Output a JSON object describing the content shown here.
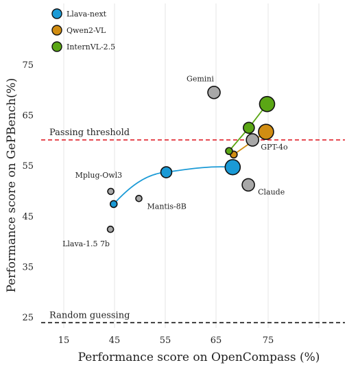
{
  "chart_data": {
    "type": "scatter",
    "xlabel": "Performance score on OpenCompass (%)",
    "ylabel": "Performance score on GePBench(%)",
    "x_ticks": [
      15,
      45,
      55,
      65,
      75
    ],
    "y_ticks": [
      25,
      35,
      45,
      55,
      65,
      75
    ],
    "grid": true,
    "legend_position": "top-left",
    "series": [
      {
        "name": "Llava-next",
        "color": "#1a9ad6",
        "points": [
          {
            "x": 44.5,
            "y": 47.5,
            "size": "small"
          },
          {
            "x": 55.2,
            "y": 53.8,
            "size": "medium"
          },
          {
            "x": 68.2,
            "y": 54.8,
            "size": "large"
          }
        ]
      },
      {
        "name": "Qwen2-VL",
        "color": "#d18d12",
        "points": [
          {
            "x": 68.4,
            "y": 57.3,
            "size": "small"
          },
          {
            "x": 74.6,
            "y": 61.8,
            "size": "large"
          }
        ]
      },
      {
        "name": "InternVL-2.5",
        "color": "#5aa615",
        "points": [
          {
            "x": 67.5,
            "y": 58.0,
            "size": "small"
          },
          {
            "x": 71.3,
            "y": 62.6,
            "size": "medium"
          },
          {
            "x": 74.8,
            "y": 67.3,
            "size": "large"
          }
        ]
      }
    ],
    "other_models": [
      {
        "label": "Gemini",
        "x": 64.6,
        "y": 69.6
      },
      {
        "label": "GPT-4o",
        "x": 72.0,
        "y": 60.2
      },
      {
        "label": "Claude",
        "x": 71.2,
        "y": 51.3
      },
      {
        "label": "Mplug-Owl3",
        "x": 42.8,
        "y": 50.0
      },
      {
        "label": "Mantis-8B",
        "x": 49.8,
        "y": 48.6
      },
      {
        "label": "Llava-1.5 7b",
        "x": 42.6,
        "y": 42.5
      }
    ],
    "other_color": "#a8a8a8",
    "reference_lines": [
      {
        "label": "Passing threshold",
        "y": 60.2,
        "color": "#e0212a",
        "style": "dashed"
      },
      {
        "label": "Random guessing",
        "y": 24.0,
        "color": "#111111",
        "style": "dashed"
      }
    ]
  }
}
